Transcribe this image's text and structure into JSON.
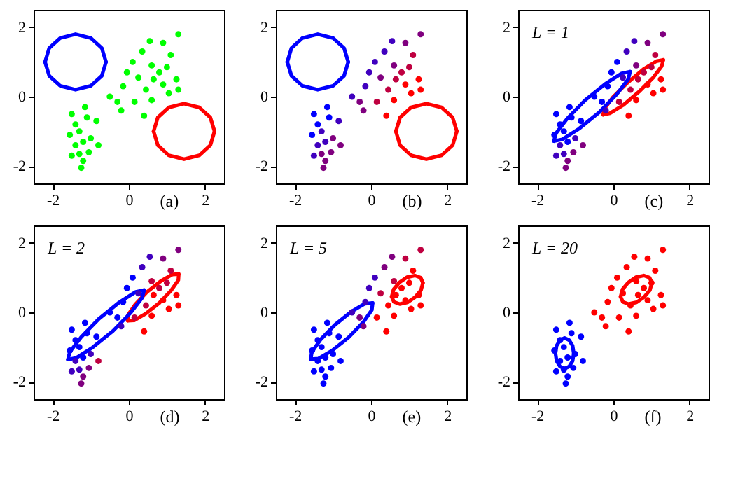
{
  "chart_data": [
    {
      "type": "scatter",
      "xlabel": "(a)",
      "xlim": [
        -2.5,
        2.5
      ],
      "ylim": [
        -2.5,
        2.5
      ],
      "xticks": [
        -2,
        0,
        2
      ],
      "yticks": [
        -2,
        0,
        2
      ],
      "marker": "circle",
      "series": [
        {
          "type": "scatter",
          "color": "#00ff00",
          "x": [
            -1.5,
            -1.4,
            -1.3,
            -1.55,
            -1.2,
            -1.4,
            -1.3,
            -1.5,
            -1.2,
            -1.25,
            -1.05,
            -1.0,
            -1.1,
            -0.85,
            -0.8,
            -1.15,
            -0.5,
            -0.3,
            -0.2,
            -0.15,
            -0.05,
            0.1,
            0.35,
            0.55,
            0.9,
            1.3,
            1.1,
            0.6,
            0.8,
            1.0,
            1.25,
            0.9,
            0.65,
            0.45,
            0.6,
            1.3,
            0.25,
            0.15,
            0.4,
            1.05
          ],
          "values": [
            -0.5,
            -0.8,
            -1.0,
            -1.1,
            -1.3,
            -1.4,
            -1.65,
            -1.7,
            -1.85,
            -2.05,
            -1.6,
            -1.2,
            -0.6,
            -0.7,
            -1.4,
            -0.3,
            0.0,
            -0.15,
            -0.4,
            0.3,
            0.7,
            1.0,
            1.3,
            1.6,
            1.55,
            1.8,
            1.2,
            0.9,
            0.7,
            0.85,
            0.5,
            0.35,
            0.5,
            0.2,
            -0.1,
            0.2,
            0.55,
            -0.15,
            -0.55,
            0.1
          ]
        },
        {
          "type": "line",
          "marker": "none",
          "color": "#0000ff",
          "x": [
            -2.2,
            -2.09,
            -1.8,
            -1.4,
            -1.0,
            -0.71,
            -0.6
          ],
          "values": [
            1.0,
            1.4,
            1.69,
            1.8,
            1.69,
            1.4,
            1.0
          ]
        },
        {
          "type": "line",
          "marker": "none",
          "color": "#0000ff",
          "x": [
            -2.2,
            -2.09,
            -1.8,
            -1.4,
            -1.0,
            -0.71,
            -0.6
          ],
          "values": [
            1.0,
            0.6,
            0.31,
            0.2,
            0.31,
            0.6,
            1.0
          ]
        },
        {
          "type": "line",
          "marker": "none",
          "color": "#ff0000",
          "x": [
            0.65,
            0.76,
            1.05,
            1.45,
            1.85,
            2.14,
            2.25
          ],
          "values": [
            -1.0,
            -0.6,
            -0.31,
            -0.2,
            -0.31,
            -0.6,
            -1.0
          ]
        },
        {
          "type": "line",
          "marker": "none",
          "color": "#ff0000",
          "x": [
            0.65,
            0.76,
            1.05,
            1.45,
            1.85,
            2.14,
            2.25
          ],
          "values": [
            -1.0,
            -1.4,
            -1.69,
            -1.8,
            -1.69,
            -1.4,
            -1.0
          ]
        }
      ]
    },
    {
      "type": "scatter",
      "xlabel": "(b)",
      "xlim": [
        -2.5,
        2.5
      ],
      "ylim": [
        -2.5,
        2.5
      ],
      "xticks": [
        -2,
        0,
        2
      ],
      "yticks": [
        -2,
        0,
        2
      ],
      "marker": "circle",
      "series": [
        {
          "type": "scatter",
          "colors": [
            "#0000ff",
            "#0000ff",
            "#4000bf",
            "#0000ff",
            "#4000bf",
            "#4000bf",
            "#80007f",
            "#4000bf",
            "#80007f",
            "#80007f",
            "#80007f",
            "#80007f",
            "#0000ff",
            "#4000bf",
            "#80007f",
            "#0000ff",
            "#4000bf",
            "#80007f",
            "#80007f",
            "#4000bf",
            "#4000bf",
            "#4000bf",
            "#4000bf",
            "#4000bf",
            "#80007f",
            "#80007f",
            "#bf0040",
            "#80007f",
            "#bf0040",
            "#bf0040",
            "#ff0000",
            "#ff0000",
            "#bf0040",
            "#bf0040",
            "#ff0000",
            "#ff0000",
            "#80007f",
            "#bf0040",
            "#ff0000",
            "#ff0000"
          ],
          "x": [
            -1.5,
            -1.4,
            -1.3,
            -1.55,
            -1.2,
            -1.4,
            -1.3,
            -1.5,
            -1.2,
            -1.25,
            -1.05,
            -1.0,
            -1.1,
            -0.85,
            -0.8,
            -1.15,
            -0.5,
            -0.3,
            -0.2,
            -0.15,
            -0.05,
            0.1,
            0.35,
            0.55,
            0.9,
            1.3,
            1.1,
            0.6,
            0.8,
            1.0,
            1.25,
            0.9,
            0.65,
            0.45,
            0.6,
            1.3,
            0.25,
            0.15,
            0.4,
            1.05
          ],
          "values": [
            -0.5,
            -0.8,
            -1.0,
            -1.1,
            -1.3,
            -1.4,
            -1.65,
            -1.7,
            -1.85,
            -2.05,
            -1.6,
            -1.2,
            -0.6,
            -0.7,
            -1.4,
            -0.3,
            0.0,
            -0.15,
            -0.4,
            0.3,
            0.7,
            1.0,
            1.3,
            1.6,
            1.55,
            1.8,
            1.2,
            0.9,
            0.7,
            0.85,
            0.5,
            0.35,
            0.5,
            0.2,
            -0.1,
            0.2,
            0.55,
            -0.15,
            -0.55,
            0.1
          ]
        },
        {
          "type": "line",
          "marker": "none",
          "color": "#0000ff",
          "x": [
            -2.2,
            -2.09,
            -1.8,
            -1.4,
            -1.0,
            -0.71,
            -0.6
          ],
          "values": [
            1.0,
            1.4,
            1.69,
            1.8,
            1.69,
            1.4,
            1.0
          ]
        },
        {
          "type": "line",
          "marker": "none",
          "color": "#0000ff",
          "x": [
            -2.2,
            -2.09,
            -1.8,
            -1.4,
            -1.0,
            -0.71,
            -0.6
          ],
          "values": [
            1.0,
            0.6,
            0.31,
            0.2,
            0.31,
            0.6,
            1.0
          ]
        },
        {
          "type": "line",
          "marker": "none",
          "color": "#ff0000",
          "x": [
            0.65,
            0.76,
            1.05,
            1.45,
            1.85,
            2.14,
            2.25
          ],
          "values": [
            -1.0,
            -0.6,
            -0.31,
            -0.2,
            -0.31,
            -0.6,
            -1.0
          ]
        },
        {
          "type": "line",
          "marker": "none",
          "color": "#ff0000",
          "x": [
            0.65,
            0.76,
            1.05,
            1.45,
            1.85,
            2.14,
            2.25
          ],
          "values": [
            -1.0,
            -1.4,
            -1.69,
            -1.8,
            -1.69,
            -1.4,
            -1.0
          ]
        }
      ]
    },
    {
      "type": "scatter",
      "xlabel": "(c)",
      "annotations": [
        "L = 1"
      ],
      "xlim": [
        -2.5,
        2.5
      ],
      "ylim": [
        -2.5,
        2.5
      ],
      "xticks": [
        -2,
        0,
        2
      ],
      "yticks": [
        -2,
        0,
        2
      ],
      "marker": "circle",
      "series": [
        {
          "type": "scatter",
          "colors": [
            "#0000ff",
            "#0000ff",
            "#0000ff",
            "#0000ff",
            "#0000ff",
            "#4000bf",
            "#4000bf",
            "#4000bf",
            "#80007f",
            "#80007f",
            "#80007f",
            "#4000bf",
            "#0000ff",
            "#0000ff",
            "#80007f",
            "#0000ff",
            "#0000ff",
            "#0000ff",
            "#4000bf",
            "#0000ff",
            "#0000ff",
            "#0000ff",
            "#4000bf",
            "#4000bf",
            "#80007f",
            "#80007f",
            "#bf0040",
            "#80007f",
            "#bf0040",
            "#bf0040",
            "#ff0000",
            "#ff0000",
            "#bf0040",
            "#bf0040",
            "#ff0000",
            "#ff0000",
            "#4000bf",
            "#bf0040",
            "#ff0000",
            "#ff0000"
          ],
          "x": [
            -1.5,
            -1.4,
            -1.3,
            -1.55,
            -1.2,
            -1.4,
            -1.3,
            -1.5,
            -1.2,
            -1.25,
            -1.05,
            -1.0,
            -1.1,
            -0.85,
            -0.8,
            -1.15,
            -0.5,
            -0.3,
            -0.2,
            -0.15,
            -0.05,
            0.1,
            0.35,
            0.55,
            0.9,
            1.3,
            1.1,
            0.6,
            0.8,
            1.0,
            1.25,
            0.9,
            0.65,
            0.45,
            0.6,
            1.3,
            0.25,
            0.15,
            0.4,
            1.05
          ],
          "values": [
            -0.5,
            -0.8,
            -1.0,
            -1.1,
            -1.3,
            -1.4,
            -1.65,
            -1.7,
            -1.85,
            -2.05,
            -1.6,
            -1.2,
            -0.6,
            -0.7,
            -1.4,
            -0.3,
            0.0,
            -0.15,
            -0.4,
            0.3,
            0.7,
            1.0,
            1.3,
            1.6,
            1.55,
            1.8,
            1.2,
            0.9,
            0.7,
            0.85,
            0.5,
            0.35,
            0.5,
            0.2,
            -0.1,
            0.2,
            0.55,
            -0.15,
            -0.55,
            0.1
          ]
        },
        {
          "type": "line",
          "marker": "none",
          "color": "#0000ff",
          "x": [
            -1.56,
            -1.51,
            -1.21,
            -0.74,
            -0.21,
            0.22,
            0.44
          ],
          "values": [
            -1.28,
            -1.06,
            -0.63,
            -0.1,
            0.37,
            0.67,
            0.72
          ]
        },
        {
          "type": "line",
          "marker": "none",
          "color": "#0000ff",
          "x": [
            -1.56,
            -1.34,
            -0.91,
            -0.38,
            0.09,
            0.39,
            0.44
          ],
          "values": [
            -1.28,
            -1.23,
            -0.93,
            -0.46,
            0.07,
            0.5,
            0.72
          ]
        },
        {
          "type": "line",
          "marker": "none",
          "color": "#ff0000",
          "x": [
            -0.27,
            -0.23,
            0.0,
            0.38,
            0.79,
            1.13,
            1.31
          ],
          "values": [
            -0.52,
            -0.34,
            0.0,
            0.41,
            0.79,
            1.02,
            1.06
          ]
        },
        {
          "type": "line",
          "marker": "none",
          "color": "#ff0000",
          "x": [
            -0.27,
            -0.09,
            0.25,
            0.66,
            1.04,
            1.27,
            1.31
          ],
          "values": [
            -0.52,
            -0.48,
            -0.25,
            0.13,
            0.54,
            0.88,
            1.06
          ]
        }
      ]
    },
    {
      "type": "scatter",
      "xlabel": "(d)",
      "annotations": [
        "L = 2"
      ],
      "xlim": [
        -2.5,
        2.5
      ],
      "ylim": [
        -2.5,
        2.5
      ],
      "xticks": [
        -2,
        0,
        2
      ],
      "yticks": [
        -2,
        0,
        2
      ],
      "marker": "circle",
      "series": [
        {
          "type": "scatter",
          "colors": [
            "#0000ff",
            "#0000ff",
            "#0000ff",
            "#0000ff",
            "#0000ff",
            "#4000bf",
            "#4000bf",
            "#4000bf",
            "#80007f",
            "#80007f",
            "#80007f",
            "#4000bf",
            "#0000ff",
            "#0000ff",
            "#bf0040",
            "#0000ff",
            "#0000ff",
            "#0000ff",
            "#4000bf",
            "#0000ff",
            "#0000ff",
            "#0000ff",
            "#4000bf",
            "#4000bf",
            "#80007f",
            "#80007f",
            "#bf0040",
            "#bf0040",
            "#bf0040",
            "#bf0040",
            "#ff0000",
            "#ff0000",
            "#ff0000",
            "#bf0040",
            "#ff0000",
            "#ff0000",
            "#4000bf",
            "#bf0040",
            "#ff0000",
            "#ff0000"
          ],
          "x": [
            -1.5,
            -1.4,
            -1.3,
            -1.55,
            -1.2,
            -1.4,
            -1.3,
            -1.5,
            -1.2,
            -1.25,
            -1.05,
            -1.0,
            -1.1,
            -0.85,
            -0.8,
            -1.15,
            -0.5,
            -0.3,
            -0.2,
            -0.15,
            -0.05,
            0.1,
            0.35,
            0.55,
            0.9,
            1.3,
            1.1,
            0.6,
            0.8,
            1.0,
            1.25,
            0.9,
            0.65,
            0.45,
            0.6,
            1.3,
            0.25,
            0.15,
            0.4,
            1.05
          ],
          "values": [
            -0.5,
            -0.8,
            -1.0,
            -1.1,
            -1.3,
            -1.4,
            -1.65,
            -1.7,
            -1.85,
            -2.05,
            -1.6,
            -1.2,
            -0.6,
            -0.7,
            -1.4,
            -0.3,
            0.0,
            -0.15,
            -0.4,
            0.3,
            0.7,
            1.0,
            1.3,
            1.6,
            1.55,
            1.8,
            1.2,
            0.9,
            0.7,
            0.85,
            0.5,
            0.35,
            0.5,
            0.2,
            -0.1,
            0.2,
            0.55,
            -0.15,
            -0.55,
            0.1
          ]
        },
        {
          "type": "line",
          "marker": "none",
          "color": "#0000ff",
          "x": [
            -1.6,
            -1.55,
            -1.25,
            -0.78,
            -0.25,
            0.18,
            0.4
          ],
          "values": [
            -1.36,
            -1.14,
            -0.71,
            -0.18,
            0.29,
            0.59,
            0.64
          ]
        },
        {
          "type": "line",
          "marker": "none",
          "color": "#0000ff",
          "x": [
            -1.6,
            -1.38,
            -0.95,
            -0.42,
            0.05,
            0.35,
            0.4
          ],
          "values": [
            -1.36,
            -1.31,
            -1.01,
            -0.54,
            -0.01,
            0.42,
            0.64
          ]
        },
        {
          "type": "line",
          "marker": "none",
          "color": "#ff0000",
          "x": [
            -0.03,
            -0.02,
            0.17,
            0.48,
            0.84,
            1.14,
            1.31
          ],
          "values": [
            -0.24,
            -0.07,
            0.23,
            0.59,
            0.9,
            1.09,
            1.1
          ]
        },
        {
          "type": "line",
          "marker": "none",
          "color": "#ff0000",
          "x": [
            -0.03,
            0.14,
            0.44,
            0.8,
            1.11,
            1.3,
            1.31
          ],
          "values": [
            -0.24,
            -0.23,
            -0.04,
            0.27,
            0.63,
            0.93,
            1.1
          ]
        }
      ]
    },
    {
      "type": "scatter",
      "xlabel": "(e)",
      "annotations": [
        "L = 5"
      ],
      "xlim": [
        -2.5,
        2.5
      ],
      "ylim": [
        -2.5,
        2.5
      ],
      "xticks": [
        -2,
        0,
        2
      ],
      "yticks": [
        -2,
        0,
        2
      ],
      "marker": "circle",
      "series": [
        {
          "type": "scatter",
          "colors": [
            "#0000ff",
            "#0000ff",
            "#0000ff",
            "#0000ff",
            "#0000ff",
            "#0000ff",
            "#0000ff",
            "#0000ff",
            "#0000ff",
            "#0000ff",
            "#0000ff",
            "#0000ff",
            "#0000ff",
            "#0000ff",
            "#0000ff",
            "#0000ff",
            "#4000bf",
            "#80007f",
            "#80007f",
            "#4000bf",
            "#4000bf",
            "#4000bf",
            "#80007f",
            "#80007f",
            "#bf0040",
            "#bf0040",
            "#ff0000",
            "#bf0040",
            "#ff0000",
            "#ff0000",
            "#ff0000",
            "#ff0000",
            "#ff0000",
            "#ff0000",
            "#ff0000",
            "#ff0000",
            "#bf0040",
            "#ff0000",
            "#ff0000",
            "#ff0000"
          ],
          "x": [
            -1.5,
            -1.4,
            -1.3,
            -1.55,
            -1.2,
            -1.4,
            -1.3,
            -1.5,
            -1.2,
            -1.25,
            -1.05,
            -1.0,
            -1.1,
            -0.85,
            -0.8,
            -1.15,
            -0.5,
            -0.3,
            -0.2,
            -0.15,
            -0.05,
            0.1,
            0.35,
            0.55,
            0.9,
            1.3,
            1.1,
            0.6,
            0.8,
            1.0,
            1.25,
            0.9,
            0.65,
            0.45,
            0.6,
            1.3,
            0.25,
            0.15,
            0.4,
            1.05
          ],
          "values": [
            -0.5,
            -0.8,
            -1.0,
            -1.1,
            -1.3,
            -1.4,
            -1.65,
            -1.7,
            -1.85,
            -2.05,
            -1.6,
            -1.2,
            -0.6,
            -0.7,
            -1.4,
            -0.3,
            0.0,
            -0.15,
            -0.4,
            0.3,
            0.7,
            1.0,
            1.3,
            1.6,
            1.55,
            1.8,
            1.2,
            0.9,
            0.7,
            0.85,
            0.5,
            0.35,
            0.5,
            0.2,
            -0.1,
            0.2,
            0.55,
            -0.15,
            -0.55,
            0.1
          ]
        },
        {
          "type": "line",
          "marker": "none",
          "color": "#0000ff",
          "x": [
            -1.58,
            -1.56,
            -1.33,
            -0.95,
            -0.52,
            -0.16,
            0.04
          ],
          "values": [
            -1.35,
            -1.15,
            -0.79,
            -0.36,
            0.02,
            0.25,
            0.27
          ]
        },
        {
          "type": "line",
          "marker": "none",
          "color": "#0000ff",
          "x": [
            -1.58,
            -1.38,
            -1.02,
            -0.59,
            -0.21,
            0.02,
            0.04
          ],
          "values": [
            -1.35,
            -1.33,
            -1.1,
            -0.72,
            -0.29,
            0.07,
            0.27
          ]
        },
        {
          "type": "line",
          "marker": "none",
          "color": "#ff0000",
          "x": [
            0.54,
            0.59,
            0.74,
            0.94,
            1.15,
            1.3,
            1.36
          ],
          "values": [
            0.45,
            0.66,
            0.86,
            1.01,
            1.06,
            1.0,
            0.85
          ]
        },
        {
          "type": "line",
          "marker": "none",
          "color": "#ff0000",
          "x": [
            0.54,
            0.6,
            0.75,
            0.96,
            1.16,
            1.31,
            1.36
          ],
          "values": [
            0.45,
            0.3,
            0.24,
            0.29,
            0.44,
            0.64,
            0.85
          ]
        }
      ]
    },
    {
      "type": "scatter",
      "xlabel": "(f)",
      "annotations": [
        "L = 20"
      ],
      "xlim": [
        -2.5,
        2.5
      ],
      "ylim": [
        -2.5,
        2.5
      ],
      "xticks": [
        -2,
        0,
        2
      ],
      "yticks": [
        -2,
        0,
        2
      ],
      "marker": "circle",
      "series": [
        {
          "type": "scatter",
          "colors": [
            "#0000ff",
            "#0000ff",
            "#0000ff",
            "#0000ff",
            "#0000ff",
            "#0000ff",
            "#0000ff",
            "#0000ff",
            "#0000ff",
            "#0000ff",
            "#0000ff",
            "#0000ff",
            "#0000ff",
            "#0000ff",
            "#0000ff",
            "#0000ff",
            "#ff0000",
            "#ff0000",
            "#ff0000",
            "#ff0000",
            "#ff0000",
            "#ff0000",
            "#ff0000",
            "#ff0000",
            "#ff0000",
            "#ff0000",
            "#ff0000",
            "#ff0000",
            "#ff0000",
            "#ff0000",
            "#ff0000",
            "#ff0000",
            "#ff0000",
            "#ff0000",
            "#ff0000",
            "#ff0000",
            "#ff0000",
            "#ff0000",
            "#ff0000",
            "#ff0000"
          ],
          "x": [
            -1.5,
            -1.4,
            -1.3,
            -1.55,
            -1.2,
            -1.4,
            -1.3,
            -1.5,
            -1.2,
            -1.25,
            -1.05,
            -1.0,
            -1.1,
            -0.85,
            -0.8,
            -1.15,
            -0.5,
            -0.3,
            -0.2,
            -0.15,
            -0.05,
            0.1,
            0.35,
            0.55,
            0.9,
            1.3,
            1.1,
            0.6,
            0.8,
            1.0,
            1.25,
            0.9,
            0.65,
            0.45,
            0.6,
            1.3,
            0.25,
            0.15,
            0.4,
            1.05
          ],
          "values": [
            -0.5,
            -0.8,
            -1.0,
            -1.1,
            -1.3,
            -1.4,
            -1.65,
            -1.7,
            -1.85,
            -2.05,
            -1.6,
            -1.2,
            -0.6,
            -0.7,
            -1.4,
            -0.3,
            0.0,
            -0.15,
            -0.4,
            0.3,
            0.7,
            1.0,
            1.3,
            1.6,
            1.55,
            1.8,
            1.2,
            0.9,
            0.7,
            0.85,
            0.5,
            0.35,
            0.5,
            0.2,
            -0.1,
            0.2,
            0.55,
            -0.15,
            -0.55,
            0.1
          ]
        },
        {
          "type": "line",
          "marker": "none",
          "color": "#0000ff",
          "x": [
            -1.52,
            -1.49,
            -1.4,
            -1.28,
            -1.16,
            -1.07,
            -1.04
          ],
          "values": [
            -1.18,
            -0.96,
            -0.8,
            -0.74,
            -0.8,
            -0.96,
            -1.18
          ]
        },
        {
          "type": "line",
          "marker": "none",
          "color": "#0000ff",
          "x": [
            -1.52,
            -1.49,
            -1.4,
            -1.28,
            -1.16,
            -1.07,
            -1.04
          ],
          "values": [
            -1.18,
            -1.4,
            -1.56,
            -1.62,
            -1.56,
            -1.4,
            -1.18
          ]
        },
        {
          "type": "line",
          "marker": "none",
          "color": "#ff0000",
          "x": [
            0.19,
            0.24,
            0.39,
            0.59,
            0.8,
            0.95,
            1.01
          ],
          "values": [
            0.45,
            0.66,
            0.86,
            1.01,
            1.06,
            1.0,
            0.85
          ]
        },
        {
          "type": "line",
          "marker": "none",
          "color": "#ff0000",
          "x": [
            0.19,
            0.25,
            0.4,
            0.61,
            0.81,
            0.96,
            1.01
          ],
          "values": [
            0.45,
            0.3,
            0.24,
            0.29,
            0.44,
            0.64,
            0.85
          ]
        }
      ]
    }
  ]
}
